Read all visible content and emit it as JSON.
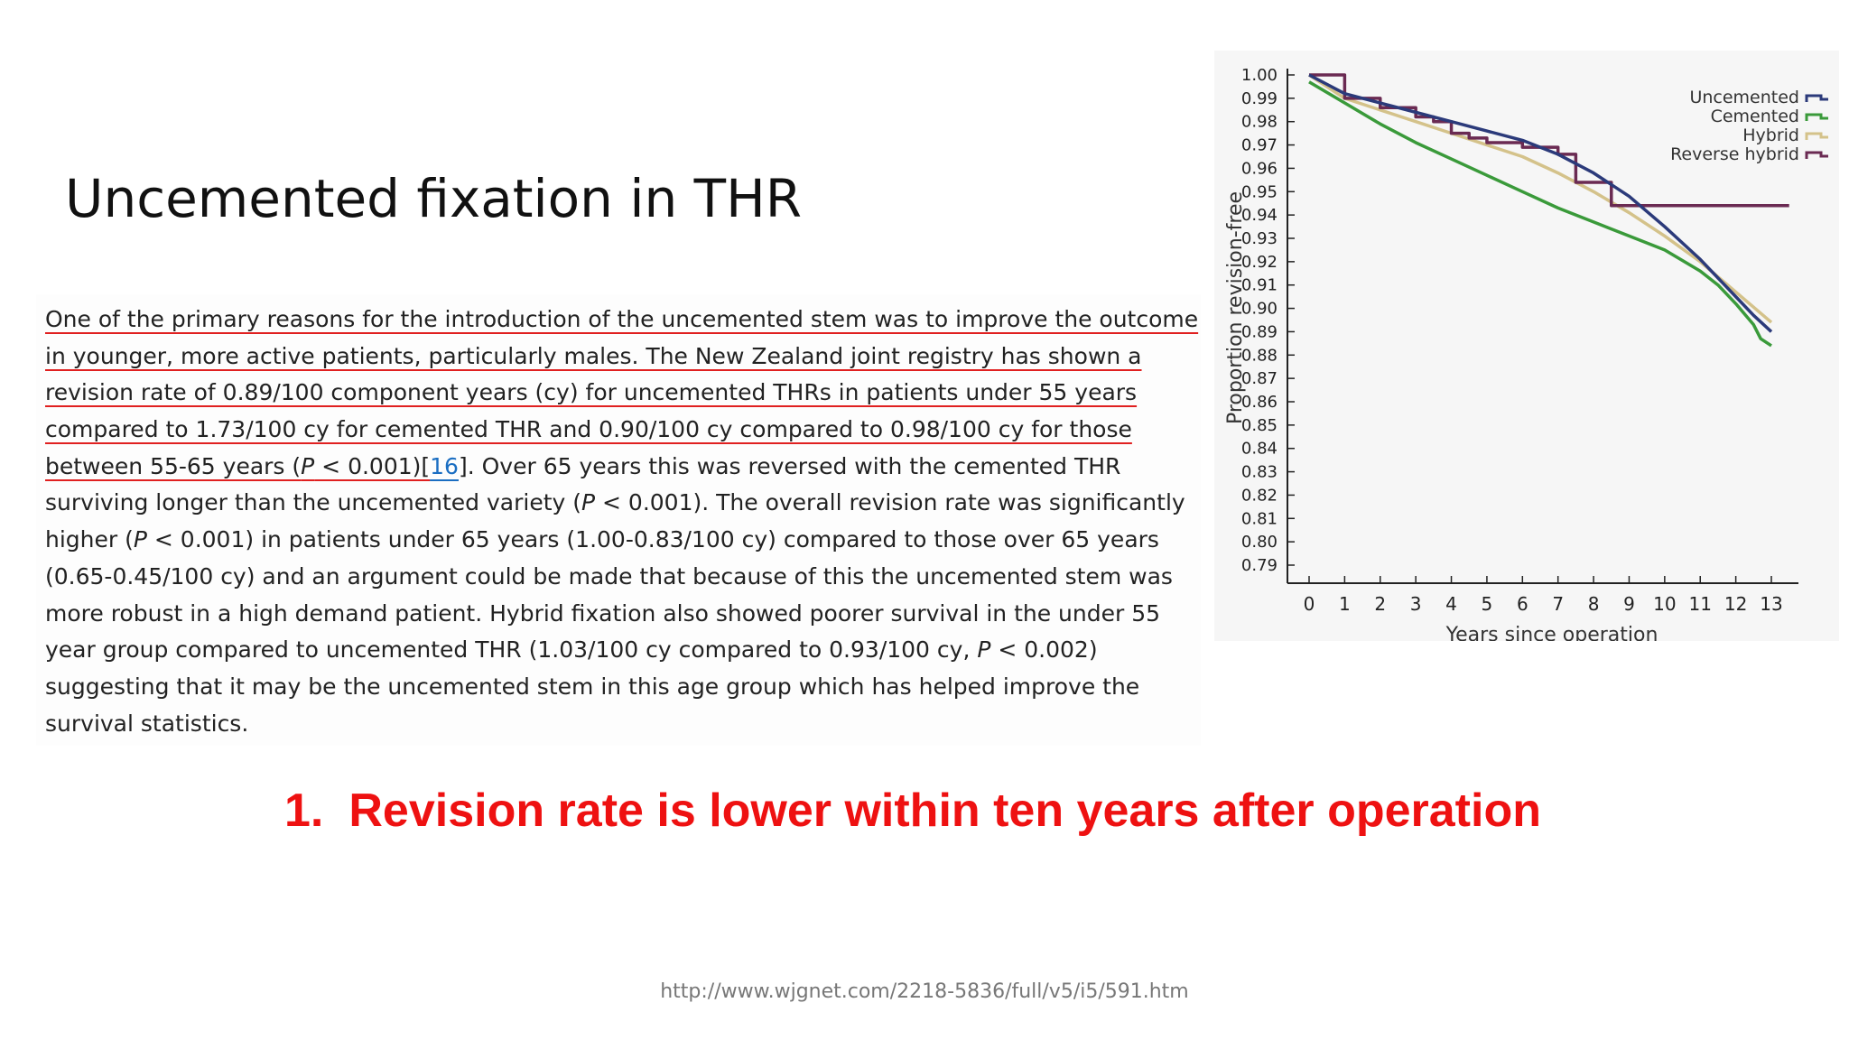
{
  "slide": {
    "title": "Uncemented fixation in THR",
    "conclusion_number": "1.",
    "conclusion_text": "Revision rate is lower within ten years after operation",
    "source_url": "http://www.wjgnet.com/2218-5836/full/v5/i5/591.htm"
  },
  "article": {
    "lines": [
      "One of the primary reasons for the introduction of the uncemented stem was to improve the outcome",
      "in younger, more active patients, particularly males. The New Zealand joint registry has shown a",
      "revision rate of 0.89/100 component years (cy) for uncemented THRs in patients under 55 years",
      "compared to 1.73/100 cy for cemented THR and 0.90/100 cy compared to 0.98/100 cy for those",
      "between 55-65 years (",
      "P",
      " < 0.001)[",
      "16",
      "]. Over 65 years this was reversed with the cemented THR",
      "surviving longer than the uncemented variety (",
      "P",
      " < 0.001). The overall revision rate was significantly",
      "higher (",
      "P",
      " < 0.001) in patients under 65 years (1.00-0.83/100 cy) compared to those over 65 years",
      "(0.65-0.45/100 cy) and an argument could be made that because of this the uncemented stem was",
      "more robust in a high demand patient. Hybrid fixation also showed poorer survival in the under 55",
      "year group compared to uncemented THR (1.03/100 cy compared to 0.93/100 cy, ",
      "P",
      " < 0.002)",
      "suggesting that it may be the uncemented stem in this age group which has helped improve the",
      "survival statistics."
    ]
  },
  "colors": {
    "uncemented": "#2b3a7a",
    "cemented": "#3a9a3a",
    "hybrid": "#d4c28a",
    "reverse_hybrid": "#6a2a52",
    "underline": "#e02020",
    "conclusion": "#ee1111"
  },
  "chart_data": {
    "type": "line",
    "xlabel": "Years since operation",
    "ylabel": "Proportion revision-free",
    "xlim": [
      0,
      13
    ],
    "ylim": [
      0.79,
      1.0
    ],
    "x_ticks": [
      "0",
      "1",
      "2",
      "3",
      "4",
      "5",
      "6",
      "7",
      "8",
      "9",
      "10",
      "11",
      "12",
      "13"
    ],
    "y_ticks": [
      "1.00",
      "0.99",
      "0.98",
      "0.97",
      "0.96",
      "0.95",
      "0.94",
      "0.93",
      "0.92",
      "0.91",
      "0.90",
      "0.89",
      "0.88",
      "0.87",
      "0.86",
      "0.85",
      "0.84",
      "0.83",
      "0.82",
      "0.81",
      "0.80",
      "0.79"
    ],
    "legend_position": "top-right",
    "series": [
      {
        "name": "Uncemented",
        "color_key": "uncemented",
        "points": [
          [
            0,
            1.0
          ],
          [
            1,
            0.992
          ],
          [
            2,
            0.988
          ],
          [
            3,
            0.984
          ],
          [
            4,
            0.98
          ],
          [
            5,
            0.976
          ],
          [
            6,
            0.972
          ],
          [
            7,
            0.966
          ],
          [
            8,
            0.958
          ],
          [
            9,
            0.948
          ],
          [
            10,
            0.935
          ],
          [
            11,
            0.921
          ],
          [
            12,
            0.905
          ],
          [
            12.5,
            0.897
          ],
          [
            13,
            0.89
          ]
        ]
      },
      {
        "name": "Cemented",
        "color_key": "cemented",
        "points": [
          [
            0,
            0.997
          ],
          [
            1,
            0.988
          ],
          [
            2,
            0.979
          ],
          [
            3,
            0.971
          ],
          [
            4,
            0.964
          ],
          [
            5,
            0.957
          ],
          [
            6,
            0.95
          ],
          [
            7,
            0.943
          ],
          [
            8,
            0.937
          ],
          [
            9,
            0.931
          ],
          [
            10,
            0.925
          ],
          [
            11,
            0.916
          ],
          [
            11.5,
            0.91
          ],
          [
            12,
            0.902
          ],
          [
            12.5,
            0.893
          ],
          [
            12.7,
            0.887
          ],
          [
            13,
            0.884
          ]
        ]
      },
      {
        "name": "Hybrid",
        "color_key": "hybrid",
        "points": [
          [
            0,
            1.0
          ],
          [
            1,
            0.99
          ],
          [
            2,
            0.985
          ],
          [
            3,
            0.98
          ],
          [
            4,
            0.975
          ],
          [
            5,
            0.97
          ],
          [
            6,
            0.965
          ],
          [
            7,
            0.958
          ],
          [
            8,
            0.95
          ],
          [
            9,
            0.941
          ],
          [
            10,
            0.931
          ],
          [
            11,
            0.92
          ],
          [
            12,
            0.907
          ],
          [
            13,
            0.894
          ]
        ]
      },
      {
        "name": "Reverse hybrid",
        "color_key": "reverse_hybrid",
        "step": true,
        "points": [
          [
            0,
            1.0
          ],
          [
            1,
            0.99
          ],
          [
            2,
            0.986
          ],
          [
            3,
            0.982
          ],
          [
            3.5,
            0.98
          ],
          [
            4,
            0.975
          ],
          [
            4.5,
            0.973
          ],
          [
            5,
            0.971
          ],
          [
            6,
            0.969
          ],
          [
            7,
            0.966
          ],
          [
            7.5,
            0.954
          ],
          [
            8.5,
            0.944
          ],
          [
            13.5,
            0.944
          ]
        ]
      }
    ]
  }
}
